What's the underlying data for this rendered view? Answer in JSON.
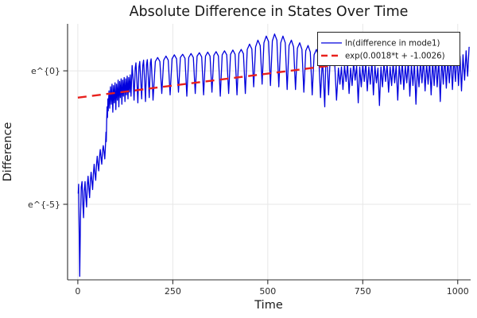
{
  "chart_data": {
    "type": "line",
    "title": "Absolute Difference in States Over Time",
    "xlabel": "Time",
    "ylabel": "Difference",
    "x_ticks": [
      {
        "value": 0,
        "label": "0"
      },
      {
        "value": 250,
        "label": "250"
      },
      {
        "value": 500,
        "label": "500"
      },
      {
        "value": 750,
        "label": "750"
      },
      {
        "value": 1000,
        "label": "1000"
      }
    ],
    "y_ticks": [
      {
        "value": 0,
        "label": "e^{0}"
      },
      {
        "value": -5,
        "label": "e^{-5}"
      }
    ],
    "y_scale": "log-e (values stored as natural log of difference)",
    "xlim": [
      -27,
      1034
    ],
    "ylim_ln": [
      -7.83,
      1.76
    ],
    "grid": true,
    "legend_position": "top-right",
    "background_color": "#ffffff",
    "series": [
      {
        "name": "ln(difference in mode1)",
        "color": "#0000dd",
        "style": "solid",
        "stroke_width": 1.3,
        "points": [
          [
            1,
            -4.6
          ],
          [
            2,
            -4.25
          ],
          [
            3,
            -5.3
          ],
          [
            5,
            -7.7
          ],
          [
            7,
            -5.6
          ],
          [
            9,
            -4.35
          ],
          [
            11,
            -4.15
          ],
          [
            13,
            -4.9
          ],
          [
            15,
            -5.5
          ],
          [
            17,
            -4.5
          ],
          [
            19,
            -4.15
          ],
          [
            21,
            -4.7
          ],
          [
            23,
            -5.1
          ],
          [
            25,
            -4.3
          ],
          [
            27,
            -3.95
          ],
          [
            29,
            -4.4
          ],
          [
            31,
            -4.75
          ],
          [
            33,
            -4.1
          ],
          [
            35,
            -3.8
          ],
          [
            37,
            -4.15
          ],
          [
            39,
            -4.45
          ],
          [
            41,
            -3.85
          ],
          [
            43,
            -3.5
          ],
          [
            45,
            -3.85
          ],
          [
            47,
            -4.1
          ],
          [
            49,
            -3.55
          ],
          [
            51,
            -3.2
          ],
          [
            53,
            -3.5
          ],
          [
            55,
            -3.75
          ],
          [
            57,
            -3.25
          ],
          [
            59,
            -2.95
          ],
          [
            61,
            -3.25
          ],
          [
            63,
            -3.5
          ],
          [
            65,
            -3.0
          ],
          [
            67,
            -2.8
          ],
          [
            69,
            -3.05
          ],
          [
            71,
            -3.3
          ],
          [
            73,
            -2.7
          ],
          [
            74,
            -2.3
          ],
          [
            75,
            -2.65
          ],
          [
            76,
            -1.85
          ],
          [
            77,
            -1.35
          ],
          [
            78,
            -1.75
          ],
          [
            79,
            -1.05
          ],
          [
            80,
            -1.5
          ],
          [
            82,
            -0.75
          ],
          [
            84,
            -1.4
          ],
          [
            86,
            -0.6
          ],
          [
            88,
            -1.25
          ],
          [
            90,
            -0.5
          ],
          [
            92,
            -1.55
          ],
          [
            94,
            -0.55
          ],
          [
            96,
            -1.2
          ],
          [
            98,
            -0.45
          ],
          [
            100,
            -1.45
          ],
          [
            102,
            -0.5
          ],
          [
            104,
            -1.1
          ],
          [
            106,
            -0.35
          ],
          [
            108,
            -1.35
          ],
          [
            110,
            -0.4
          ],
          [
            112,
            -1.0
          ],
          [
            114,
            -0.3
          ],
          [
            116,
            -1.25
          ],
          [
            118,
            -0.35
          ],
          [
            120,
            -0.95
          ],
          [
            122,
            -0.25
          ],
          [
            124,
            -1.15
          ],
          [
            126,
            -0.3
          ],
          [
            128,
            -0.9
          ],
          [
            130,
            -0.2
          ],
          [
            132,
            -1.05
          ],
          [
            134,
            -0.25
          ],
          [
            136,
            -0.8
          ],
          [
            138,
            -0.15
          ],
          [
            140,
            -0.95
          ],
          [
            143,
            0.2
          ],
          [
            146,
            -0.4
          ],
          [
            148,
            -1.1
          ],
          [
            151,
            0.1
          ],
          [
            153,
            0.3
          ],
          [
            156,
            -0.5
          ],
          [
            158,
            -1.2
          ],
          [
            161,
            0.15
          ],
          [
            163,
            0.35
          ],
          [
            166,
            -0.45
          ],
          [
            168,
            -1.05
          ],
          [
            171,
            0.2
          ],
          [
            173,
            0.4
          ],
          [
            176,
            -0.4
          ],
          [
            178,
            -1.15
          ],
          [
            181,
            0.25
          ],
          [
            183,
            0.42
          ],
          [
            186,
            -0.35
          ],
          [
            188,
            -1.0
          ],
          [
            191,
            0.3
          ],
          [
            193,
            0.45
          ],
          [
            196,
            -0.45
          ],
          [
            198,
            -1.1
          ],
          [
            204,
            0.35
          ],
          [
            210,
            0.5
          ],
          [
            216,
            0.35
          ],
          [
            221,
            -0.85
          ],
          [
            226,
            0.4
          ],
          [
            232,
            0.55
          ],
          [
            238,
            0.4
          ],
          [
            243,
            -0.9
          ],
          [
            248,
            0.45
          ],
          [
            254,
            0.6
          ],
          [
            260,
            0.45
          ],
          [
            265,
            -0.8
          ],
          [
            270,
            0.5
          ],
          [
            276,
            0.62
          ],
          [
            282,
            0.47
          ],
          [
            287,
            -0.95
          ],
          [
            292,
            0.5
          ],
          [
            298,
            0.65
          ],
          [
            304,
            0.5
          ],
          [
            309,
            -0.85
          ],
          [
            314,
            0.55
          ],
          [
            320,
            0.68
          ],
          [
            326,
            0.52
          ],
          [
            331,
            -0.9
          ],
          [
            336,
            0.55
          ],
          [
            342,
            0.7
          ],
          [
            348,
            0.55
          ],
          [
            353,
            -0.8
          ],
          [
            358,
            0.58
          ],
          [
            364,
            0.72
          ],
          [
            370,
            0.56
          ],
          [
            375,
            -0.95
          ],
          [
            380,
            0.6
          ],
          [
            386,
            0.75
          ],
          [
            392,
            0.6
          ],
          [
            397,
            -0.85
          ],
          [
            402,
            0.62
          ],
          [
            408,
            0.78
          ],
          [
            414,
            0.62
          ],
          [
            419,
            -0.9
          ],
          [
            424,
            0.65
          ],
          [
            430,
            0.8
          ],
          [
            436,
            0.64
          ],
          [
            441,
            -0.85
          ],
          [
            446,
            0.8
          ],
          [
            452,
            1.0
          ],
          [
            458,
            0.82
          ],
          [
            463,
            -0.6
          ],
          [
            468,
            0.9
          ],
          [
            474,
            1.15
          ],
          [
            480,
            0.95
          ],
          [
            485,
            -0.5
          ],
          [
            490,
            1.05
          ],
          [
            496,
            1.3
          ],
          [
            502,
            1.1
          ],
          [
            507,
            -0.55
          ],
          [
            512,
            1.12
          ],
          [
            518,
            1.38
          ],
          [
            524,
            1.15
          ],
          [
            529,
            -0.6
          ],
          [
            534,
            1.05
          ],
          [
            540,
            1.3
          ],
          [
            546,
            1.05
          ],
          [
            551,
            -0.7
          ],
          [
            556,
            0.95
          ],
          [
            562,
            1.15
          ],
          [
            568,
            0.9
          ],
          [
            573,
            -0.7
          ],
          [
            578,
            0.85
          ],
          [
            584,
            1.05
          ],
          [
            590,
            0.8
          ],
          [
            595,
            -0.8
          ],
          [
            600,
            0.75
          ],
          [
            606,
            0.95
          ],
          [
            612,
            0.7
          ],
          [
            617,
            -0.9
          ],
          [
            622,
            0.6
          ],
          [
            628,
            0.8
          ],
          [
            634,
            0.55
          ],
          [
            639,
            -1.0
          ],
          [
            644,
            0.5
          ],
          [
            650,
            -1.35
          ],
          [
            653,
            0.55
          ],
          [
            656,
            0.45
          ],
          [
            660,
            -0.9
          ],
          [
            664,
            0.4
          ],
          [
            670,
            0.6
          ],
          [
            676,
            0.35
          ],
          [
            681,
            -1.1
          ],
          [
            686,
            0.1
          ],
          [
            690,
            -0.5
          ],
          [
            694,
            0.15
          ],
          [
            698,
            -0.7
          ],
          [
            702,
            0.2
          ],
          [
            706,
            -0.4
          ],
          [
            710,
            0.25
          ],
          [
            714,
            -0.85
          ],
          [
            718,
            0.1
          ],
          [
            722,
            -0.55
          ],
          [
            726,
            0.3
          ],
          [
            730,
            -0.35
          ],
          [
            734,
            0.2
          ],
          [
            738,
            -1.2
          ],
          [
            742,
            0.15
          ],
          [
            746,
            -0.6
          ],
          [
            750,
            0.25
          ],
          [
            754,
            -0.4
          ],
          [
            758,
            0.3
          ],
          [
            762,
            -0.75
          ],
          [
            766,
            0.15
          ],
          [
            770,
            -0.5
          ],
          [
            774,
            0.35
          ],
          [
            778,
            -0.9
          ],
          [
            782,
            0.2
          ],
          [
            786,
            -0.45
          ],
          [
            790,
            0.1
          ],
          [
            794,
            -1.3
          ],
          [
            798,
            0.15
          ],
          [
            802,
            -0.6
          ],
          [
            806,
            0.3
          ],
          [
            810,
            -0.4
          ],
          [
            814,
            0.25
          ],
          [
            818,
            -0.8
          ],
          [
            822,
            0.15
          ],
          [
            826,
            -0.55
          ],
          [
            830,
            0.3
          ],
          [
            834,
            -0.45
          ],
          [
            838,
            0.2
          ],
          [
            842,
            -1.1
          ],
          [
            846,
            0.25
          ],
          [
            850,
            -0.5
          ],
          [
            854,
            0.35
          ],
          [
            858,
            -0.7
          ],
          [
            862,
            0.2
          ],
          [
            866,
            -0.45
          ],
          [
            870,
            0.4
          ],
          [
            874,
            -0.95
          ],
          [
            878,
            0.25
          ],
          [
            882,
            -0.55
          ],
          [
            886,
            0.3
          ],
          [
            890,
            -1.25
          ],
          [
            894,
            0.2
          ],
          [
            898,
            -0.6
          ],
          [
            902,
            0.35
          ],
          [
            906,
            -0.45
          ],
          [
            910,
            0.45
          ],
          [
            914,
            -0.75
          ],
          [
            918,
            0.3
          ],
          [
            922,
            -0.5
          ],
          [
            926,
            0.4
          ],
          [
            930,
            -0.9
          ],
          [
            934,
            0.35
          ],
          [
            938,
            -0.55
          ],
          [
            942,
            0.5
          ],
          [
            946,
            -0.6
          ],
          [
            950,
            0.4
          ],
          [
            954,
            -1.15
          ],
          [
            958,
            0.45
          ],
          [
            962,
            -0.5
          ],
          [
            966,
            0.55
          ],
          [
            970,
            -0.65
          ],
          [
            974,
            0.4
          ],
          [
            978,
            -0.45
          ],
          [
            982,
            0.6
          ],
          [
            986,
            -0.7
          ],
          [
            990,
            0.5
          ],
          [
            994,
            -0.4
          ],
          [
            998,
            0.65
          ],
          [
            1002,
            -0.55
          ],
          [
            1006,
            0.55
          ],
          [
            1010,
            -0.75
          ],
          [
            1014,
            0.6
          ],
          [
            1018,
            -0.35
          ],
          [
            1022,
            0.75
          ],
          [
            1026,
            -0.2
          ],
          [
            1030,
            0.9
          ]
        ]
      },
      {
        "name": "exp(0.0018*t + -1.0026)",
        "color": "#e8211d",
        "style": "dashed",
        "stroke_width": 2.4,
        "fit_slope": 0.0018,
        "fit_intercept": -1.0026,
        "points": [
          [
            0,
            -1.0026
          ],
          [
            1005,
            0.8063
          ]
        ]
      }
    ]
  }
}
